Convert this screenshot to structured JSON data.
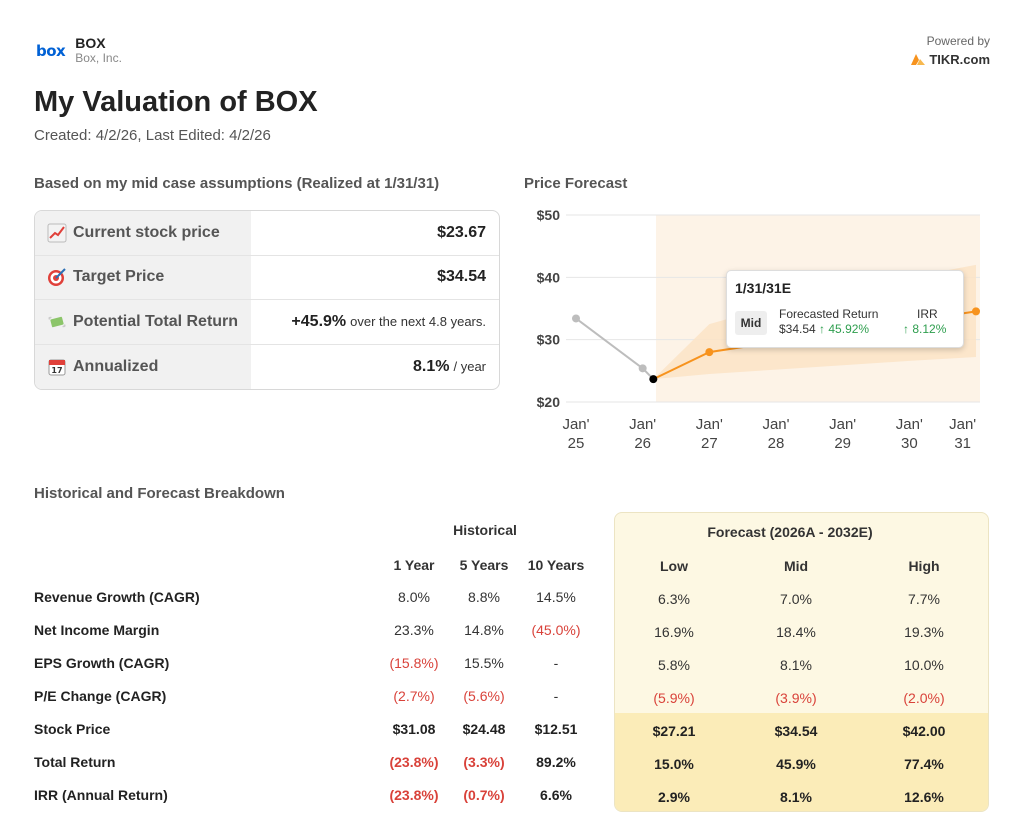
{
  "header": {
    "logo_text": "box",
    "ticker": "BOX",
    "company": "Box, Inc.",
    "powered_by": "Powered by",
    "provider": "TIKR.com",
    "title": "My Valuation of BOX",
    "subtitle": "Created: 4/2/26, Last Edited: 4/2/26"
  },
  "assumptions": {
    "heading": "Based on my mid case assumptions (Realized at 1/31/31)",
    "rows": [
      {
        "icon": "chart-increasing-icon",
        "label": "Current stock price",
        "value": "$23.67",
        "suffix": ""
      },
      {
        "icon": "dart-target-icon",
        "label": "Target Price",
        "value": "$34.54",
        "suffix": ""
      },
      {
        "icon": "money-wings-icon",
        "label": "Potential Total Return",
        "value": "+45.9%",
        "suffix": "over the next 4.8 years."
      },
      {
        "icon": "calendar-icon",
        "label": "Annualized",
        "value": "8.1%",
        "suffix": "/ year"
      }
    ]
  },
  "chart_data": {
    "type": "line",
    "title": "Price Forecast",
    "y_ticks": [
      "$50",
      "$40",
      "$30",
      "$20"
    ],
    "ylim": [
      20,
      50
    ],
    "x_ticks": [
      {
        "line1": "Jan'",
        "line2": "25",
        "x": 2025.0
      },
      {
        "line1": "Jan'",
        "line2": "26",
        "x": 2026.0
      },
      {
        "line1": "Jan'",
        "line2": "27",
        "x": 2027.0
      },
      {
        "line1": "Jan'",
        "line2": "28",
        "x": 2028.0
      },
      {
        "line1": "Jan'",
        "line2": "29",
        "x": 2029.0
      },
      {
        "line1": "Jan'",
        "line2": "30",
        "x": 2030.0
      },
      {
        "line1": "Jan'",
        "line2": "31",
        "x": 2030.8
      }
    ],
    "xlim": [
      2025.0,
      2031.0
    ],
    "forecast_start": 2026.2,
    "historical": [
      {
        "x": 2025.0,
        "y": 33.4
      },
      {
        "x": 2026.0,
        "y": 25.4
      },
      {
        "x": 2026.16,
        "y": 23.67
      }
    ],
    "mid_forecast": [
      {
        "x": 2026.16,
        "y": 23.67
      },
      {
        "x": 2027.0,
        "y": 28.0
      },
      {
        "x": 2031.0,
        "y": 34.54
      }
    ],
    "low_high_band": {
      "x": [
        2026.16,
        2027.0,
        2028.0,
        2029.0,
        2030.0,
        2031.0
      ],
      "low": [
        23.67,
        24.5,
        25.2,
        25.9,
        26.6,
        27.21
      ],
      "high": [
        23.67,
        32.5,
        35.5,
        38.0,
        40.0,
        42.0
      ]
    },
    "grid": true,
    "tooltip": {
      "date": "1/31/31E",
      "case": "Mid",
      "return_label": "Forecasted Return",
      "irr_label": "IRR",
      "price": "$34.54",
      "return_value": "↑ 45.92%",
      "irr_value": "↑ 8.12%"
    },
    "colors": {
      "historical": "#bdbdbd",
      "forecast": "#f7931e",
      "band": "#fbe3c6",
      "shade": "#fdf3e7"
    }
  },
  "breakdown": {
    "heading": "Historical and Forecast Breakdown",
    "historical_title": "Historical",
    "forecast_title": "Forecast (2026A - 2032E)",
    "columns": [
      "1 Year",
      "5 Years",
      "10 Years",
      "Low",
      "Mid",
      "High"
    ],
    "rows": [
      {
        "label": "Revenue Growth (CAGR)",
        "values": [
          "8.0%",
          "8.8%",
          "14.5%",
          "6.3%",
          "7.0%",
          "7.7%"
        ]
      },
      {
        "label": "Net Income Margin",
        "values": [
          "23.3%",
          "14.8%",
          "(45.0%)",
          "16.9%",
          "18.4%",
          "19.3%"
        ]
      },
      {
        "label": "EPS Growth (CAGR)",
        "values": [
          "(15.8%)",
          "15.5%",
          "-",
          "5.8%",
          "8.1%",
          "10.0%"
        ]
      },
      {
        "label": "P/E Change (CAGR)",
        "values": [
          "(2.7%)",
          "(5.6%)",
          "-",
          "(5.9%)",
          "(3.9%)",
          "(2.0%)"
        ]
      },
      {
        "label": "Stock Price",
        "values": [
          "$31.08",
          "$24.48",
          "$12.51",
          "$27.21",
          "$34.54",
          "$42.00"
        ]
      },
      {
        "label": "Total Return",
        "values": [
          "(23.8%)",
          "(3.3%)",
          "89.2%",
          "15.0%",
          "45.9%",
          "77.4%"
        ]
      },
      {
        "label": "IRR (Annual Return)",
        "values": [
          "(23.8%)",
          "(0.7%)",
          "6.6%",
          "2.9%",
          "8.1%",
          "12.6%"
        ]
      }
    ]
  }
}
